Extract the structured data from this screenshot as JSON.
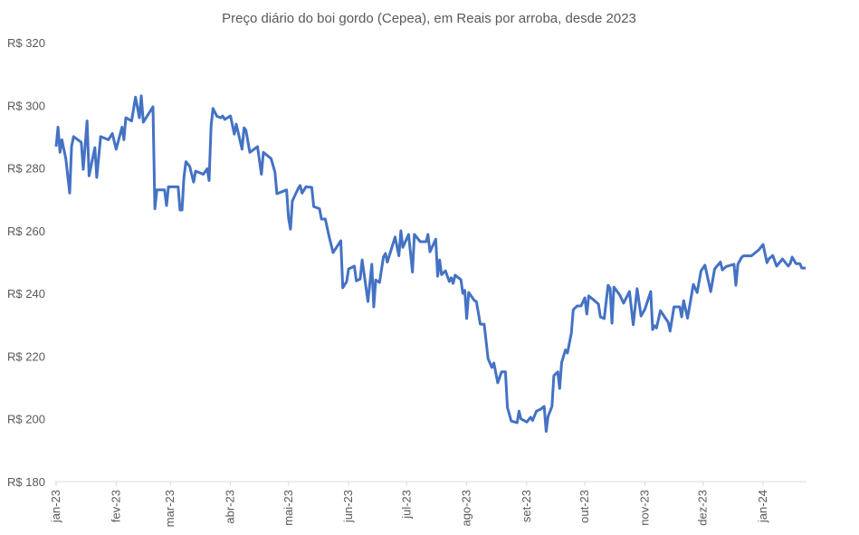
{
  "chart_data": {
    "type": "line",
    "title": "Preço diário do boi gordo (Cepea), em Reais por arroba, desde 2023",
    "xlabel": "",
    "ylabel": "",
    "x_unit": "days since 2023-01-01",
    "xlim": [
      0,
      387
    ],
    "ylim": [
      180,
      320
    ],
    "grid": false,
    "legend": "none",
    "line_color": "#4472C4",
    "y_ticks": [
      {
        "value": 180,
        "label": "R$ 180"
      },
      {
        "value": 200,
        "label": "R$ 200"
      },
      {
        "value": 220,
        "label": "R$ 220"
      },
      {
        "value": 240,
        "label": "R$ 240"
      },
      {
        "value": 260,
        "label": "R$ 260"
      },
      {
        "value": 280,
        "label": "R$ 280"
      },
      {
        "value": 300,
        "label": "R$ 300"
      },
      {
        "value": 320,
        "label": "R$ 320"
      }
    ],
    "x_ticks": [
      {
        "value": 0,
        "label": "jan-23"
      },
      {
        "value": 31,
        "label": "fev-23"
      },
      {
        "value": 59,
        "label": "mar-23"
      },
      {
        "value": 90,
        "label": "abr-23"
      },
      {
        "value": 120,
        "label": "mai-23"
      },
      {
        "value": 151,
        "label": "jun-23"
      },
      {
        "value": 181,
        "label": "jul-23"
      },
      {
        "value": 212,
        "label": "ago-23"
      },
      {
        "value": 243,
        "label": "set-23"
      },
      {
        "value": 273,
        "label": "out-23"
      },
      {
        "value": 304,
        "label": "nov-23"
      },
      {
        "value": 334,
        "label": "dez-23"
      },
      {
        "value": 365,
        "label": "jan-24"
      }
    ],
    "series": [
      {
        "name": "Boi gordo (Cepea)",
        "points": [
          [
            0,
            286.8
          ],
          [
            1,
            293
          ],
          [
            2,
            285
          ],
          [
            3,
            289
          ],
          [
            5,
            283
          ],
          [
            7,
            272
          ],
          [
            8,
            287
          ],
          [
            9,
            290
          ],
          [
            13,
            288.2
          ],
          [
            14,
            279.6
          ],
          [
            16,
            295
          ],
          [
            17,
            277.5
          ],
          [
            20,
            286.5
          ],
          [
            21,
            277
          ],
          [
            23,
            290
          ],
          [
            27,
            289
          ],
          [
            29,
            291
          ],
          [
            31,
            286
          ],
          [
            34,
            293
          ],
          [
            35,
            289
          ],
          [
            36,
            296
          ],
          [
            39,
            295
          ],
          [
            41,
            302.6
          ],
          [
            43,
            296
          ],
          [
            44,
            303
          ],
          [
            45,
            294.6
          ],
          [
            50,
            299.5
          ],
          [
            51,
            267
          ],
          [
            52,
            273
          ],
          [
            56,
            273
          ],
          [
            57,
            268
          ],
          [
            58,
            274
          ],
          [
            63,
            274
          ],
          [
            64,
            266.6
          ],
          [
            65,
            266.6
          ],
          [
            66,
            277
          ],
          [
            67,
            282
          ],
          [
            69,
            280.5
          ],
          [
            71,
            275.5
          ],
          [
            72,
            279
          ],
          [
            76,
            278
          ],
          [
            78,
            279.8
          ],
          [
            79,
            276
          ],
          [
            80,
            293.4
          ],
          [
            81,
            299
          ],
          [
            83,
            296.5
          ],
          [
            85,
            296
          ],
          [
            86,
            296.6
          ],
          [
            87,
            295.5
          ],
          [
            90,
            296.6
          ],
          [
            92,
            290.8
          ],
          [
            93,
            294
          ],
          [
            96,
            286
          ],
          [
            97,
            292.8
          ],
          [
            98,
            292
          ],
          [
            100,
            285
          ],
          [
            104,
            286.8
          ],
          [
            106,
            278
          ],
          [
            107,
            285
          ],
          [
            111,
            283
          ],
          [
            113,
            278.6
          ],
          [
            114,
            271.8
          ],
          [
            119,
            273
          ],
          [
            120,
            264
          ],
          [
            121,
            260.5
          ],
          [
            122,
            269.5
          ],
          [
            125,
            273.5
          ],
          [
            126,
            274.4
          ],
          [
            127,
            272
          ],
          [
            129,
            274
          ],
          [
            132,
            273.8
          ],
          [
            133,
            267.7
          ],
          [
            136,
            267
          ],
          [
            137,
            263.7
          ],
          [
            139,
            263.7
          ],
          [
            141,
            258
          ],
          [
            143,
            253
          ],
          [
            147,
            256.8
          ],
          [
            148,
            241.8
          ],
          [
            150,
            243.8
          ],
          [
            151,
            247.8
          ],
          [
            154,
            248.7
          ],
          [
            155,
            244
          ],
          [
            157,
            244.6
          ],
          [
            158,
            250.7
          ],
          [
            161,
            237.4
          ],
          [
            163,
            249.3
          ],
          [
            164,
            235.7
          ],
          [
            165,
            244.3
          ],
          [
            167,
            243.5
          ],
          [
            169,
            251.6
          ],
          [
            170,
            252.7
          ],
          [
            171,
            250
          ],
          [
            175,
            258
          ],
          [
            177,
            252
          ],
          [
            178,
            260
          ],
          [
            179,
            254.7
          ],
          [
            182,
            258.8
          ],
          [
            184,
            246.8
          ],
          [
            185,
            258.8
          ],
          [
            188,
            256.5
          ],
          [
            191,
            256.5
          ],
          [
            192,
            258.8
          ],
          [
            193,
            253.3
          ],
          [
            196,
            257.3
          ],
          [
            197,
            245.5
          ],
          [
            198,
            250.7
          ],
          [
            199,
            246
          ],
          [
            201,
            247.2
          ],
          [
            203,
            243.8
          ],
          [
            204,
            245
          ],
          [
            205,
            243.2
          ],
          [
            206,
            245.8
          ],
          [
            209,
            244.4
          ],
          [
            210,
            240
          ],
          [
            211,
            241
          ],
          [
            212,
            232
          ],
          [
            213,
            240.3
          ],
          [
            216,
            237.7
          ],
          [
            217,
            237.4
          ],
          [
            219,
            230.2
          ],
          [
            221,
            230.2
          ],
          [
            223,
            219.2
          ],
          [
            225,
            216.4
          ],
          [
            226,
            217.8
          ],
          [
            228,
            211.5
          ],
          [
            230,
            215
          ],
          [
            232,
            215
          ],
          [
            233,
            203.6
          ],
          [
            235,
            199.3
          ],
          [
            238,
            198.8
          ],
          [
            239,
            202.5
          ],
          [
            240,
            200
          ],
          [
            243,
            199
          ],
          [
            245,
            200.5
          ],
          [
            246,
            199.5
          ],
          [
            248,
            202.5
          ],
          [
            250,
            203
          ],
          [
            252,
            204
          ],
          [
            253,
            196
          ],
          [
            254,
            200.8
          ],
          [
            256,
            204
          ],
          [
            257,
            213.8
          ],
          [
            259,
            215
          ],
          [
            260,
            209.7
          ],
          [
            261,
            218
          ],
          [
            263,
            222
          ],
          [
            264,
            221
          ],
          [
            266,
            227.3
          ],
          [
            267,
            234.8
          ],
          [
            269,
            236
          ],
          [
            271,
            236
          ],
          [
            273,
            238.6
          ],
          [
            274,
            233.4
          ],
          [
            275,
            239.2
          ],
          [
            278,
            237.7
          ],
          [
            280,
            236.6
          ],
          [
            281,
            232.5
          ],
          [
            283,
            232
          ],
          [
            285,
            242.6
          ],
          [
            286,
            241.7
          ],
          [
            287,
            230.5
          ],
          [
            288,
            242
          ],
          [
            291,
            239.5
          ],
          [
            293,
            236.9
          ],
          [
            296,
            240.6
          ],
          [
            298,
            230
          ],
          [
            300,
            241.5
          ],
          [
            302,
            232.8
          ],
          [
            304,
            235
          ],
          [
            307,
            240.6
          ],
          [
            308,
            228.5
          ],
          [
            309,
            229.7
          ],
          [
            310,
            229
          ],
          [
            312,
            234.5
          ],
          [
            316,
            230.8
          ],
          [
            317,
            228
          ],
          [
            319,
            235.7
          ],
          [
            322,
            235.7
          ],
          [
            323,
            232.5
          ],
          [
            324,
            237.7
          ],
          [
            326,
            232.1
          ],
          [
            329,
            242.9
          ],
          [
            331,
            240.3
          ],
          [
            333,
            247.2
          ],
          [
            335,
            249
          ],
          [
            338,
            240.6
          ],
          [
            340,
            247.8
          ],
          [
            343,
            250
          ],
          [
            344,
            247.5
          ],
          [
            346,
            248.6
          ],
          [
            350,
            249.3
          ],
          [
            351,
            242.6
          ],
          [
            352,
            249.3
          ],
          [
            354,
            251.6
          ],
          [
            355,
            252
          ],
          [
            359,
            252
          ],
          [
            363,
            254
          ],
          [
            365,
            255.6
          ],
          [
            367,
            249.8
          ],
          [
            368,
            251
          ],
          [
            370,
            252.1
          ],
          [
            372,
            248.7
          ],
          [
            374,
            250.2
          ],
          [
            375,
            251
          ],
          [
            378,
            248.7
          ],
          [
            379,
            249.5
          ],
          [
            380,
            251.6
          ],
          [
            382,
            249.5
          ],
          [
            384,
            249.5
          ],
          [
            385,
            248.1
          ],
          [
            387,
            248.1
          ]
        ]
      }
    ]
  }
}
